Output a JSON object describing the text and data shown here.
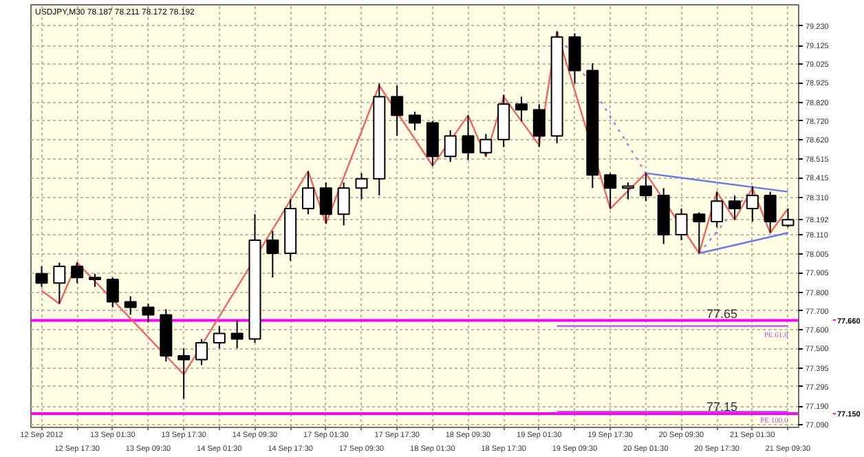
{
  "chart_data": {
    "type": "candlestick",
    "title": "USDJPY,M30  78.187 78.211 78.172 78.192",
    "color": "#000000",
    "categories": [
      "12 Sep 2012",
      null,
      "12 Sep 17:30",
      null,
      "13 Sep 01:30",
      null,
      "13 Sep 09:30",
      null,
      "13 Sep 17:30",
      null,
      "14 Sep 01:30",
      null,
      "14 Sep 09:30",
      null,
      "14 Sep 17:30",
      null,
      "17 Sep 01:30",
      null,
      "17 Sep 09:30",
      null,
      "17 Sep 17:30",
      null,
      "18 Sep 01:30",
      null,
      "18 Sep 09:30",
      null,
      "18 Sep 17:30",
      null,
      "19 Sep 01:30",
      null,
      "19 Sep 09:30",
      null,
      "19 Sep 17:30",
      null,
      "20 Sep 01:30",
      null,
      "20 Sep 09:30",
      null,
      "20 Sep 17:30",
      null,
      "21 Sep 01:30",
      null,
      "21 Sep 09:30"
    ],
    "ohlc": [
      [
        77.9,
        77.94,
        77.83,
        77.85
      ],
      [
        77.85,
        77.96,
        77.74,
        77.94
      ],
      [
        77.94,
        77.96,
        77.85,
        77.88
      ],
      [
        77.88,
        77.9,
        77.83,
        77.87
      ],
      [
        77.87,
        77.88,
        77.72,
        77.75
      ],
      [
        77.75,
        77.78,
        77.68,
        77.72
      ],
      [
        77.72,
        77.74,
        77.64,
        77.68
      ],
      [
        77.68,
        77.71,
        77.43,
        77.46
      ],
      [
        77.46,
        77.5,
        77.23,
        77.44
      ],
      [
        77.44,
        77.55,
        77.41,
        77.53
      ],
      [
        77.53,
        77.62,
        77.5,
        77.58
      ],
      [
        77.58,
        77.65,
        77.5,
        77.55
      ],
      [
        77.55,
        78.22,
        77.53,
        78.08
      ],
      [
        78.08,
        78.13,
        77.88,
        78.01
      ],
      [
        78.01,
        78.3,
        77.97,
        78.25
      ],
      [
        78.25,
        78.45,
        78.22,
        78.36
      ],
      [
        78.36,
        78.39,
        78.17,
        78.22
      ],
      [
        78.22,
        78.39,
        78.16,
        78.36
      ],
      [
        78.36,
        78.44,
        78.3,
        78.41
      ],
      [
        78.41,
        78.92,
        78.32,
        78.85
      ],
      [
        78.85,
        78.91,
        78.64,
        78.75
      ],
      [
        78.75,
        78.77,
        78.67,
        78.71
      ],
      [
        78.71,
        78.72,
        78.48,
        78.53
      ],
      [
        78.53,
        78.67,
        78.5,
        78.64
      ],
      [
        78.64,
        78.75,
        78.51,
        78.55
      ],
      [
        78.55,
        78.65,
        78.53,
        78.62
      ],
      [
        78.62,
        78.86,
        78.58,
        78.81
      ],
      [
        78.81,
        78.85,
        78.72,
        78.78
      ],
      [
        78.78,
        78.81,
        78.58,
        78.64
      ],
      [
        78.64,
        79.2,
        78.6,
        79.17
      ],
      [
        79.17,
        79.19,
        78.92,
        78.99
      ],
      [
        78.99,
        79.03,
        78.36,
        78.43
      ],
      [
        78.43,
        78.44,
        78.25,
        78.36
      ],
      [
        78.36,
        78.39,
        78.3,
        78.37
      ],
      [
        78.37,
        78.44,
        78.29,
        78.32
      ],
      [
        78.32,
        78.36,
        78.06,
        78.11
      ],
      [
        78.11,
        78.25,
        78.08,
        78.22
      ],
      [
        78.22,
        78.23,
        78.01,
        78.18
      ],
      [
        78.18,
        78.34,
        78.15,
        78.29
      ],
      [
        78.29,
        78.32,
        78.19,
        78.25
      ],
      [
        78.25,
        78.37,
        78.18,
        78.32
      ],
      [
        78.32,
        78.34,
        78.12,
        78.18
      ],
      [
        78.16,
        78.25,
        78.15,
        78.19
      ]
    ],
    "series": [
      {
        "type": "line",
        "color": "#f06464",
        "line_style": "solid",
        "values": [
          77.81,
          77.74,
          77.96,
          null,
          null,
          null,
          null,
          null,
          77.36,
          null,
          null,
          null,
          null,
          null,
          null,
          78.45,
          78.17,
          null,
          null,
          78.91,
          null,
          null,
          78.48,
          null,
          78.75,
          78.53,
          78.85,
          null,
          78.59,
          79.2,
          null,
          null,
          78.25,
          null,
          78.44,
          null,
          null,
          78.01,
          78.34,
          78.19,
          78.36,
          78.12,
          78.25
        ]
      },
      {
        "type": "line",
        "color": "#6a78e8",
        "line_style": "solid",
        "values": [
          null,
          null,
          null,
          null,
          null,
          null,
          null,
          null,
          null,
          null,
          null,
          null,
          null,
          null,
          null,
          null,
          null,
          null,
          null,
          null,
          null,
          null,
          null,
          null,
          null,
          null,
          null,
          null,
          null,
          null,
          null,
          null,
          null,
          null,
          78.44,
          null,
          null,
          null,
          null,
          null,
          null,
          null,
          78.34
        ]
      },
      {
        "type": "line",
        "color": "#6a78e8",
        "line_style": "solid",
        "values": [
          null,
          null,
          null,
          null,
          null,
          null,
          null,
          null,
          null,
          null,
          null,
          null,
          null,
          null,
          null,
          null,
          null,
          null,
          null,
          null,
          null,
          null,
          null,
          null,
          null,
          null,
          null,
          null,
          null,
          null,
          null,
          null,
          null,
          null,
          null,
          null,
          null,
          78.01,
          null,
          null,
          null,
          null,
          78.12
        ]
      },
      {
        "type": "line",
        "color": "#c070d0",
        "line_style": "dotted",
        "values": [
          null,
          null,
          null,
          null,
          null,
          null,
          null,
          null,
          null,
          null,
          null,
          null,
          null,
          null,
          null,
          null,
          null,
          null,
          null,
          null,
          null,
          null,
          null,
          null,
          null,
          null,
          null,
          null,
          null,
          79.2,
          null,
          null,
          null,
          null,
          78.44,
          null,
          null,
          null,
          null,
          null,
          null,
          null,
          null
        ]
      },
      {
        "type": "line",
        "color": "#c070d0",
        "line_style": "dotted",
        "values": [
          null,
          null,
          null,
          null,
          null,
          null,
          null,
          null,
          null,
          null,
          null,
          null,
          null,
          null,
          null,
          null,
          null,
          null,
          null,
          null,
          null,
          null,
          null,
          null,
          null,
          null,
          null,
          null,
          null,
          null,
          null,
          null,
          null,
          null,
          null,
          null,
          null,
          78.01,
          null,
          null,
          78.36,
          null,
          null
        ]
      },
      {
        "name": "PE 61.8",
        "type": "line",
        "color": "#c050e0",
        "line_style": "solid",
        "values": [
          null,
          null,
          null,
          null,
          null,
          null,
          null,
          null,
          null,
          null,
          null,
          null,
          null,
          null,
          null,
          null,
          null,
          null,
          null,
          null,
          null,
          null,
          null,
          null,
          null,
          null,
          null,
          null,
          null,
          77.62,
          null,
          null,
          null,
          null,
          null,
          null,
          null,
          null,
          null,
          null,
          null,
          null,
          77.62
        ]
      },
      {
        "name": "PE 100.0",
        "type": "line",
        "color": "#c050e0",
        "line_style": "solid",
        "values": [
          null,
          null,
          null,
          null,
          null,
          null,
          null,
          null,
          null,
          null,
          null,
          null,
          null,
          null,
          null,
          null,
          null,
          null,
          null,
          null,
          null,
          null,
          null,
          null,
          null,
          null,
          null,
          null,
          null,
          77.16,
          null,
          null,
          null,
          null,
          null,
          null,
          null,
          null,
          null,
          null,
          null,
          null,
          77.16
        ]
      }
    ],
    "ref_lines": [
      {
        "axis": "y",
        "value": 77.65,
        "label": "77.65",
        "color": "#ff00ff"
      },
      {
        "axis": "y",
        "value": 77.15,
        "label": "77.15",
        "color": "#ff00ff"
      }
    ],
    "ylim": [
      77.076,
      79.343
    ],
    "annotations": [
      "77.660",
      "77.150"
    ],
    "yticks": [
      {
        "value": 77.09,
        "label": "77.090"
      },
      {
        "value": 77.19,
        "label": "77.190"
      },
      {
        "value": 77.295,
        "label": "77.295"
      },
      {
        "value": 77.395,
        "label": "77.395"
      },
      {
        "value": 77.5,
        "label": "77.500"
      },
      {
        "value": 77.6,
        "label": "77.600"
      },
      {
        "value": 77.7,
        "label": "77.700"
      },
      {
        "value": 77.8,
        "label": "77.800"
      },
      {
        "value": 77.905,
        "label": "77.905"
      },
      {
        "value": 78.005,
        "label": "78.005"
      },
      {
        "value": 78.11,
        "label": "78.110"
      },
      {
        "value": 78.192,
        "label": "78.192"
      },
      {
        "value": 78.31,
        "label": "78.310"
      },
      {
        "value": 78.415,
        "label": "78.415"
      },
      {
        "value": 78.515,
        "label": "78.515"
      },
      {
        "value": 78.62,
        "label": "78.620"
      },
      {
        "value": 78.72,
        "label": "78.720"
      },
      {
        "value": 78.82,
        "label": "78.820"
      },
      {
        "value": 78.925,
        "label": "78.925"
      },
      {
        "value": 79.025,
        "label": "79.025"
      },
      {
        "value": 79.125,
        "label": "79.125"
      },
      {
        "value": 79.23,
        "label": "79.230"
      }
    ],
    "grid": true,
    "marker": "none"
  }
}
